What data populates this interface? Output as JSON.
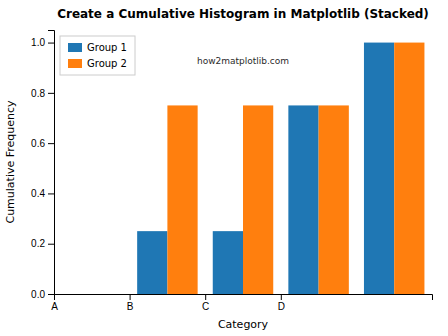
{
  "chart_data": {
    "type": "histogram",
    "title": "Create a Cumulative Histogram in Matplotlib (Stacked)",
    "x_label": "Category",
    "y_label": "Cumulative Frequency",
    "bins": [
      0,
      10,
      20,
      30,
      40,
      50
    ],
    "series": [
      {
        "name": "Group 1",
        "color": "#1f77b4",
        "values": [
          0.0,
          0.25,
          0.25,
          0.75,
          1.0
        ]
      },
      {
        "name": "Group 2",
        "color": "#ff7f0e",
        "values": [
          0.0,
          0.75,
          0.75,
          0.75,
          1.0
        ]
      }
    ],
    "xlim": [
      0,
      50
    ],
    "xticks": [
      {
        "value": 0,
        "label": "A"
      },
      {
        "value": 10,
        "label": "B"
      },
      {
        "value": 20,
        "label": "C"
      },
      {
        "value": 30,
        "label": "D"
      }
    ],
    "ylim": [
      0,
      1.05
    ],
    "yticks": [
      {
        "value": 0,
        "label": "0.0"
      },
      0.2,
      0.4,
      0.6,
      0.8,
      {
        "value": 1,
        "label": "1.0"
      }
    ],
    "annotations": [
      "how2matplotlib.com"
    ],
    "legend": "upper left",
    "grid": false
  }
}
